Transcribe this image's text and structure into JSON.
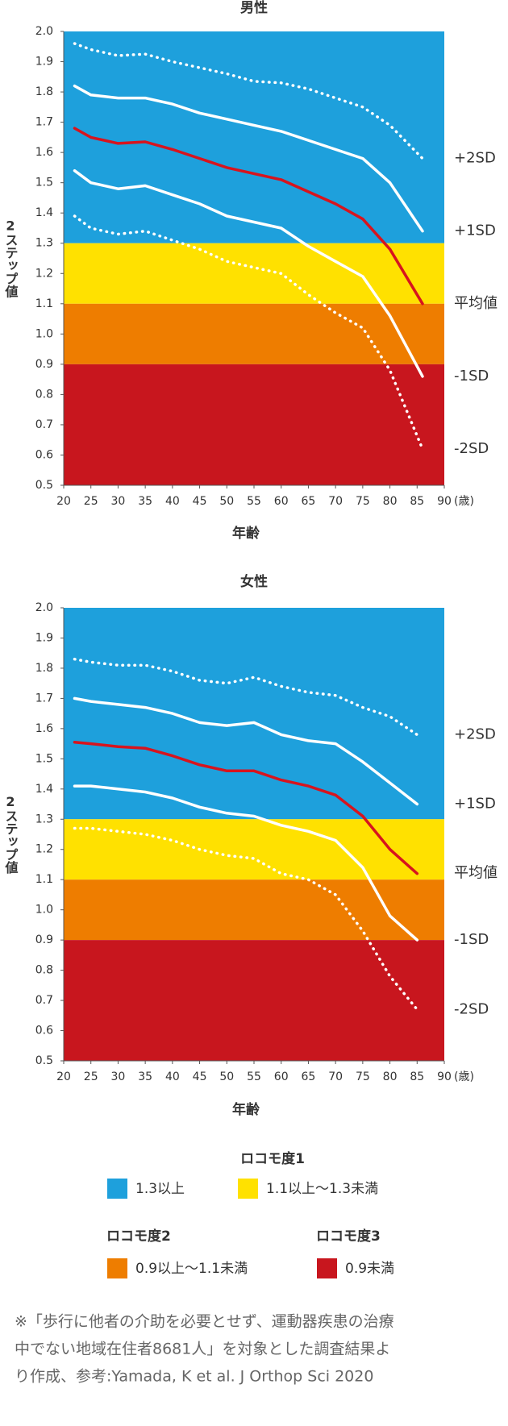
{
  "chart_data": [
    {
      "type": "line",
      "title": "男性",
      "x_label": "年齢",
      "x_unit": "(歳)",
      "y_label": "2ステップ値",
      "xlim": [
        20,
        90
      ],
      "xticks": [
        20,
        25,
        30,
        35,
        40,
        45,
        50,
        55,
        60,
        65,
        70,
        75,
        80,
        85,
        90
      ],
      "ylim": [
        0.5,
        2.0
      ],
      "yticks": [
        {
          "value": 0.5,
          "label": "0.5"
        },
        {
          "value": 0.6,
          "label": "0.6"
        },
        {
          "value": 0.7,
          "label": "0.7"
        },
        {
          "value": 0.8,
          "label": "0.8"
        },
        {
          "value": 0.9,
          "label": "0.9"
        },
        {
          "value": 1.0,
          "label": "1.0"
        },
        {
          "value": 1.1,
          "label": "1.1"
        },
        {
          "value": 1.2,
          "label": "1.2"
        },
        {
          "value": 1.3,
          "label": "1.3"
        },
        {
          "value": 1.4,
          "label": "1.4"
        },
        {
          "value": 1.5,
          "label": "1.5"
        },
        {
          "value": 1.6,
          "label": "1.6"
        },
        {
          "value": 1.7,
          "label": "1.7"
        },
        {
          "value": 1.8,
          "label": "1.8"
        },
        {
          "value": 1.9,
          "label": "1.9"
        },
        {
          "value": 2.0,
          "label": "2.0"
        }
      ],
      "bands": [
        {
          "from": 1.3,
          "to": 2.0,
          "color": "#1ea0dc"
        },
        {
          "from": 1.1,
          "to": 1.3,
          "color": "#ffe100"
        },
        {
          "from": 0.9,
          "to": 1.1,
          "color": "#ee7d00"
        },
        {
          "from": 0.5,
          "to": 0.9,
          "color": "#c8161e"
        }
      ],
      "x": [
        22,
        25,
        30,
        35,
        40,
        45,
        50,
        55,
        60,
        65,
        70,
        75,
        80,
        86
      ],
      "series": [
        {
          "name": "+2SD",
          "color": "#ffffff",
          "style": "dotted",
          "values": [
            1.96,
            1.94,
            1.92,
            1.925,
            1.9,
            1.88,
            1.86,
            1.835,
            1.83,
            1.81,
            1.78,
            1.75,
            1.69,
            1.58
          ]
        },
        {
          "name": "+1SD",
          "color": "#ffffff",
          "style": "solid",
          "values": [
            1.82,
            1.79,
            1.78,
            1.78,
            1.76,
            1.73,
            1.71,
            1.69,
            1.67,
            1.64,
            1.61,
            1.58,
            1.5,
            1.34
          ]
        },
        {
          "name": "平均値",
          "color": "#d7141e",
          "style": "solid",
          "values": [
            1.68,
            1.65,
            1.63,
            1.635,
            1.61,
            1.58,
            1.55,
            1.53,
            1.51,
            1.47,
            1.43,
            1.38,
            1.28,
            1.1
          ]
        },
        {
          "name": "-1SD",
          "color": "#ffffff",
          "style": "solid",
          "values": [
            1.54,
            1.5,
            1.48,
            1.49,
            1.46,
            1.43,
            1.39,
            1.37,
            1.35,
            1.29,
            1.24,
            1.19,
            1.06,
            0.86
          ]
        },
        {
          "name": "-2SD",
          "color": "#ffffff",
          "style": "dotted",
          "values": [
            1.39,
            1.35,
            1.33,
            1.34,
            1.31,
            1.28,
            1.24,
            1.22,
            1.2,
            1.13,
            1.07,
            1.02,
            0.88,
            0.62
          ]
        }
      ]
    },
    {
      "type": "line",
      "title": "女性",
      "x_label": "年齢",
      "x_unit": "(歳)",
      "y_label": "2ステップ値",
      "xlim": [
        20,
        90
      ],
      "xticks": [
        20,
        25,
        30,
        35,
        40,
        45,
        50,
        55,
        60,
        65,
        70,
        75,
        80,
        85,
        90
      ],
      "ylim": [
        0.5,
        2.0
      ],
      "yticks": [
        {
          "value": 0.5,
          "label": "0.5"
        },
        {
          "value": 0.6,
          "label": "0.6"
        },
        {
          "value": 0.7,
          "label": "0.7"
        },
        {
          "value": 0.8,
          "label": "0.8"
        },
        {
          "value": 0.9,
          "label": "0.9"
        },
        {
          "value": 1.0,
          "label": "1.0"
        },
        {
          "value": 1.1,
          "label": "1.1"
        },
        {
          "value": 1.2,
          "label": "1.2"
        },
        {
          "value": 1.3,
          "label": "1.3"
        },
        {
          "value": 1.4,
          "label": "1.4"
        },
        {
          "value": 1.5,
          "label": "1.5"
        },
        {
          "value": 1.6,
          "label": "1.6"
        },
        {
          "value": 1.7,
          "label": "1.7"
        },
        {
          "value": 1.8,
          "label": "1.8"
        },
        {
          "value": 1.9,
          "label": "1.9"
        },
        {
          "value": 2.0,
          "label": "2.0"
        }
      ],
      "bands": [
        {
          "from": 1.3,
          "to": 2.0,
          "color": "#1ea0dc"
        },
        {
          "from": 1.1,
          "to": 1.3,
          "color": "#ffe100"
        },
        {
          "from": 0.9,
          "to": 1.1,
          "color": "#ee7d00"
        },
        {
          "from": 0.5,
          "to": 0.9,
          "color": "#c8161e"
        }
      ],
      "x": [
        22,
        25,
        30,
        35,
        40,
        45,
        50,
        55,
        60,
        65,
        70,
        75,
        80,
        85
      ],
      "series": [
        {
          "name": "+2SD",
          "color": "#ffffff",
          "style": "dotted",
          "values": [
            1.83,
            1.82,
            1.81,
            1.81,
            1.79,
            1.76,
            1.75,
            1.77,
            1.74,
            1.72,
            1.71,
            1.67,
            1.64,
            1.58
          ]
        },
        {
          "name": "+1SD",
          "color": "#ffffff",
          "style": "solid",
          "values": [
            1.7,
            1.69,
            1.68,
            1.67,
            1.65,
            1.62,
            1.61,
            1.62,
            1.58,
            1.56,
            1.55,
            1.49,
            1.42,
            1.35
          ]
        },
        {
          "name": "平均値",
          "color": "#d7141e",
          "style": "solid",
          "values": [
            1.555,
            1.55,
            1.54,
            1.535,
            1.51,
            1.48,
            1.46,
            1.46,
            1.43,
            1.41,
            1.38,
            1.31,
            1.2,
            1.12
          ]
        },
        {
          "name": "-1SD",
          "color": "#ffffff",
          "style": "solid",
          "values": [
            1.41,
            1.41,
            1.4,
            1.39,
            1.37,
            1.34,
            1.32,
            1.31,
            1.28,
            1.26,
            1.23,
            1.14,
            0.98,
            0.9
          ]
        },
        {
          "name": "-2SD",
          "color": "#ffffff",
          "style": "dotted",
          "values": [
            1.27,
            1.27,
            1.26,
            1.25,
            1.23,
            1.2,
            1.18,
            1.17,
            1.12,
            1.1,
            1.05,
            0.93,
            0.78,
            0.67
          ]
        }
      ]
    }
  ],
  "legend": {
    "groups": [
      {
        "title": "ロコモ度1",
        "items": [
          {
            "label": "1.3以上",
            "color": "#1ea0dc"
          },
          {
            "label": "1.1以上〜1.3未満",
            "color": "#ffe100"
          }
        ]
      },
      {
        "title": "ロコモ度2",
        "items": [
          {
            "label": "0.9以上〜1.1未満",
            "color": "#ee7d00"
          }
        ]
      },
      {
        "title": "ロコモ度3",
        "items": [
          {
            "label": "0.9未満",
            "color": "#c8161e"
          }
        ]
      }
    ]
  },
  "note": [
    "※「歩行に他者の介助を必要とせず、運動器疾患の治療",
    "中でない地域在住者8681人」を対象とした調査結果よ",
    "り作成、参考:Yamada, K et al. J Orthop Sci 2020"
  ]
}
